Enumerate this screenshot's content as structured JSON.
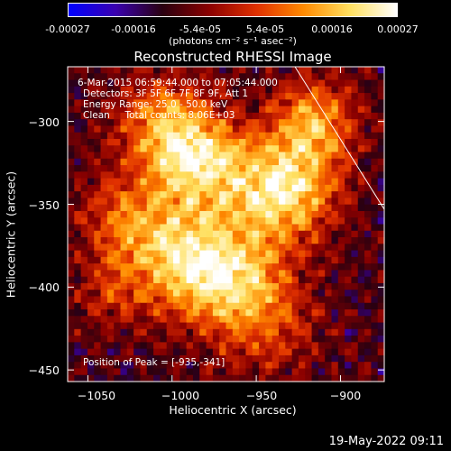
{
  "colorbar": {
    "ticks": [
      "-0.00027",
      "-0.00016",
      "-5.4e-05",
      "5.4e-05",
      "0.00016",
      "0.00027"
    ],
    "unit_label": "(photons cm⁻² s⁻¹ asec⁻²)",
    "colors": [
      "#0000ff",
      "#3a00b0",
      "#2a0010",
      "#8b0000",
      "#e03000",
      "#ff8a00",
      "#ffe060",
      "#ffffff"
    ]
  },
  "info": {
    "time_range": "6-Mar-2015 06:59:44.000 to 07:05:44.000",
    "detectors": "Detectors: 3F 5F 6F 7F 8F 9F, Att 1",
    "energy": "Energy Range: 25.0 - 50.0 keV",
    "clean": "Clean     Total counts: 8.06E+03",
    "peak": "Position of Peak = [-935,-341]"
  },
  "timestamp": "19-May-2022 09:11",
  "chart_data": {
    "type": "heatmap",
    "title": "Reconstructed RHESSI Image",
    "xlabel": "Heliocentric X (arcsec)",
    "ylabel": "Heliocentric Y (arcsec)",
    "xlim": [
      -1062,
      -874
    ],
    "ylim": [
      -457,
      -267
    ],
    "xticks": [
      -1050,
      -1000,
      -950,
      -900
    ],
    "yticks": [
      -300,
      -350,
      -400,
      -450
    ],
    "xtick_labels": [
      "−1050",
      "−1000",
      "−950",
      "−900"
    ],
    "ytick_labels": [
      "−300",
      "−350",
      "−400",
      "−450"
    ],
    "zlim": [
      -0.00027,
      0.00027
    ],
    "peak_position": [
      -935,
      -341
    ],
    "limb_line": {
      "x": [
        -927,
        -874
      ],
      "y": [
        -267,
        -353
      ]
    },
    "sources": [
      {
        "x": -935,
        "y": -341,
        "amp": 1.0,
        "sigma": 22
      },
      {
        "x": -985,
        "y": -325,
        "amp": 0.85,
        "sigma": 20
      },
      {
        "x": -990,
        "y": -385,
        "amp": 0.8,
        "sigma": 22
      },
      {
        "x": -1025,
        "y": -360,
        "amp": 0.55,
        "sigma": 20
      },
      {
        "x": -960,
        "y": -395,
        "amp": 0.6,
        "sigma": 22
      },
      {
        "x": -915,
        "y": -300,
        "amp": 0.65,
        "sigma": 18
      },
      {
        "x": -1005,
        "y": -300,
        "amp": 0.6,
        "sigma": 20
      },
      {
        "x": -945,
        "y": -425,
        "amp": 0.35,
        "sigma": 22
      },
      {
        "x": -1035,
        "y": -405,
        "amp": 0.3,
        "sigma": 16
      }
    ]
  }
}
